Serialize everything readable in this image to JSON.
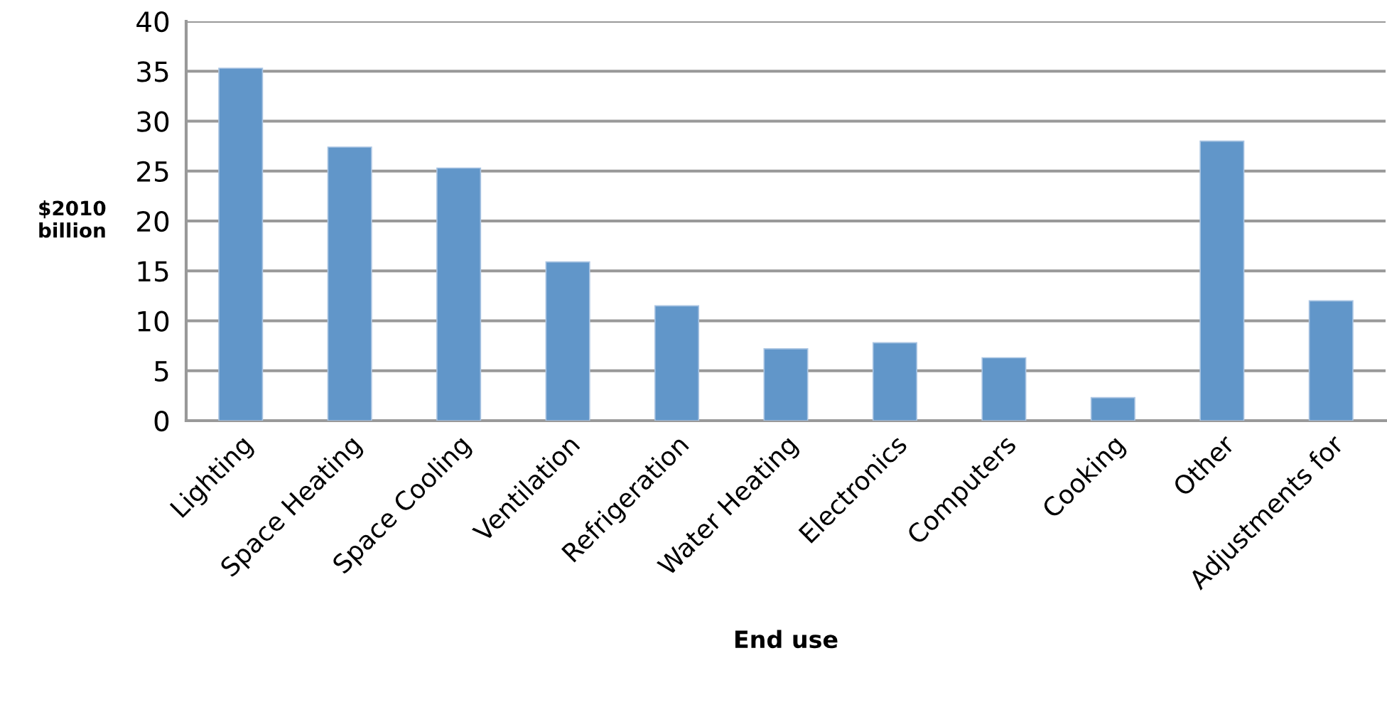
{
  "chart_data": {
    "type": "bar",
    "categories": [
      "Lighting",
      "Space Heating",
      "Space Cooling",
      "Ventilation",
      "Refrigeration",
      "Water Heating",
      "Electronics",
      "Computers",
      "Cooking",
      "Other",
      "Adjustments for"
    ],
    "values": [
      35.3,
      27.4,
      25.3,
      15.9,
      11.5,
      7.2,
      7.8,
      6.3,
      2.3,
      28.0,
      12.0
    ],
    "color": "#6196c9",
    "xlabel": "End use",
    "ylabel": "$2010\nbillion",
    "ylim": [
      0,
      40
    ],
    "yticks": [
      0,
      5,
      10,
      15,
      20,
      25,
      30,
      35,
      40
    ],
    "grid": "y",
    "legend": false
  }
}
